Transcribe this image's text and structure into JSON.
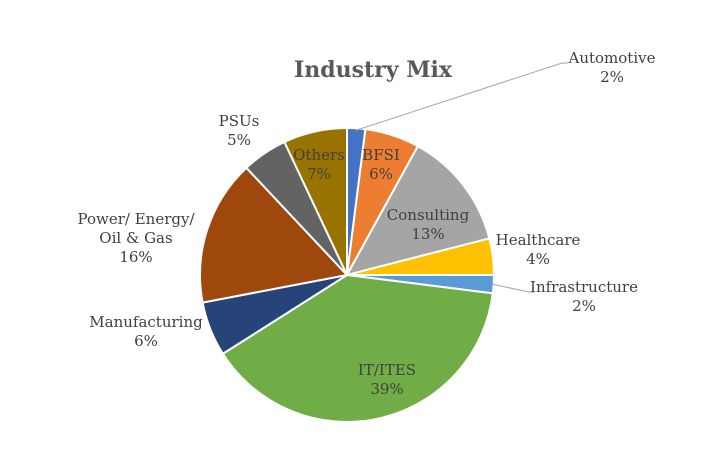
{
  "chart_data": {
    "type": "pie",
    "title": "Industry Mix",
    "slices": [
      {
        "label": "Automotive",
        "value": 2,
        "value_label": "2%",
        "color": "#4472C4"
      },
      {
        "label": "BFSI",
        "value": 6,
        "value_label": "6%",
        "color": "#ED7D31"
      },
      {
        "label": "Consulting",
        "value": 13,
        "value_label": "13%",
        "color": "#A5A5A5"
      },
      {
        "label": "Healthcare",
        "value": 4,
        "value_label": "4%",
        "color": "#FFC000"
      },
      {
        "label": "Infrastructure",
        "value": 2,
        "value_label": "2%",
        "color": "#5B9BD5"
      },
      {
        "label": "IT/ITES",
        "value": 39,
        "value_label": "39%",
        "color": "#70AD47"
      },
      {
        "label": "Manufacturing",
        "value": 6,
        "value_label": "6%",
        "color": "#264478"
      },
      {
        "label": "Power/ Energy/ Oil & Gas",
        "value": 16,
        "value_label": "16%",
        "color": "#9E480E"
      },
      {
        "label": "PSUs",
        "value": 5,
        "value_label": "5%",
        "color": "#636363"
      },
      {
        "label": "Others",
        "value": 7,
        "value_label": "7%",
        "color": "#997300"
      }
    ],
    "legend": "none"
  }
}
